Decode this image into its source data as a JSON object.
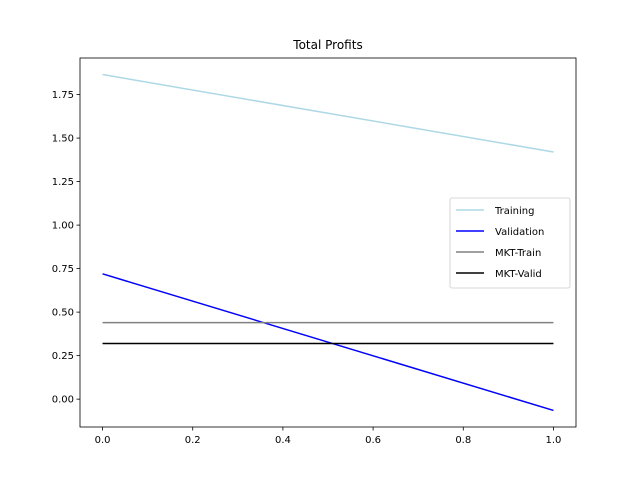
{
  "chart_data": {
    "type": "line",
    "title": "Total Profits",
    "xlabel": "",
    "ylabel": "",
    "xlim": [
      -0.05,
      1.05
    ],
    "ylim": [
      -0.16,
      1.96
    ],
    "xticks": [
      0.0,
      0.2,
      0.4,
      0.6,
      0.8,
      1.0
    ],
    "xtick_labels": [
      "0.0",
      "0.2",
      "0.4",
      "0.6",
      "0.8",
      "1.0"
    ],
    "yticks": [
      0.0,
      0.25,
      0.5,
      0.75,
      1.0,
      1.25,
      1.5,
      1.75
    ],
    "ytick_labels": [
      "0.00",
      "0.25",
      "0.50",
      "0.75",
      "1.00",
      "1.25",
      "1.50",
      "1.75"
    ],
    "grid": false,
    "legend_position": "center-right",
    "series": [
      {
        "name": "Training",
        "color": "#add8e6",
        "x": [
          0,
          1
        ],
        "y": [
          1.865,
          1.42
        ]
      },
      {
        "name": "Validation",
        "color": "#0000ff",
        "x": [
          0,
          1
        ],
        "y": [
          0.72,
          -0.065
        ]
      },
      {
        "name": "MKT-Train",
        "color": "#808080",
        "x": [
          0,
          1
        ],
        "y": [
          0.44,
          0.44
        ]
      },
      {
        "name": "MKT-Valid",
        "color": "#000000",
        "x": [
          0,
          1
        ],
        "y": [
          0.32,
          0.32
        ]
      }
    ]
  }
}
